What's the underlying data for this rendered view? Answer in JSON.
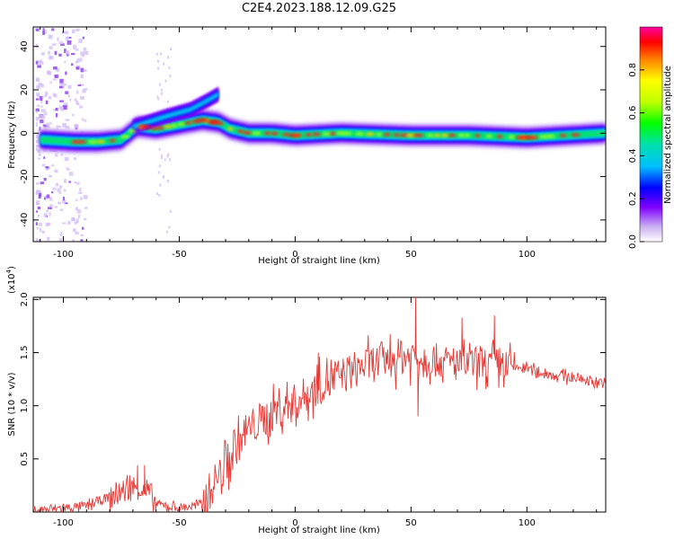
{
  "title": "C2E4.2023.188.12.09.G25",
  "chart_data": [
    {
      "type": "heatmap",
      "xlabel": "Height of straight line (km)",
      "ylabel": "Frequency (Hz)",
      "xlim": [
        -113,
        134
      ],
      "ylim": [
        -50,
        49
      ],
      "xticks": [
        -100,
        -50,
        0,
        50,
        100
      ],
      "yticks": [
        -40,
        -20,
        0,
        20,
        40
      ],
      "ridge": [
        {
          "x": -110,
          "y": -3
        },
        {
          "x": -95,
          "y": -4
        },
        {
          "x": -85,
          "y": -4
        },
        {
          "x": -75,
          "y": -3
        },
        {
          "x": -68,
          "y": 3
        },
        {
          "x": -60,
          "y": 2
        },
        {
          "x": -50,
          "y": 4
        },
        {
          "x": -40,
          "y": 6
        },
        {
          "x": -33,
          "y": 5
        },
        {
          "x": -28,
          "y": 2
        },
        {
          "x": -20,
          "y": 0
        },
        {
          "x": -10,
          "y": 0
        },
        {
          "x": 0,
          "y": -1
        },
        {
          "x": 20,
          "y": 0
        },
        {
          "x": 50,
          "y": -1
        },
        {
          "x": 75,
          "y": -1
        },
        {
          "x": 100,
          "y": -2
        },
        {
          "x": 134,
          "y": 0
        }
      ],
      "upper_branch": [
        {
          "x": -70,
          "y": 3
        },
        {
          "x": -55,
          "y": 8
        },
        {
          "x": -45,
          "y": 11
        },
        {
          "x": -38,
          "y": 15
        },
        {
          "x": -33,
          "y": 18
        }
      ],
      "colorbar": {
        "label": "Normalized spectral amplitude",
        "range": [
          0,
          1
        ],
        "ticks": [
          0.0,
          0.2,
          0.4,
          0.6,
          0.8
        ]
      }
    },
    {
      "type": "line",
      "xlabel": "Height of straight line (km)",
      "ylabel": "SNR (10 * v/v)",
      "scale_label": "(x10",
      "scale_exp": "4",
      "scale_close": ")",
      "xlim": [
        -113,
        134
      ],
      "ylim": [
        0,
        2.02
      ],
      "xticks": [
        -100,
        -50,
        0,
        50,
        100
      ],
      "yticks": [
        0.5,
        1.0,
        1.5,
        2.0
      ],
      "ytick_labels": [
        "0.5",
        "1.0",
        "1.5",
        "2.0"
      ],
      "color": "#e53935",
      "envelope": [
        {
          "x": -113,
          "y": 0.02
        },
        {
          "x": -90,
          "y": 0.06
        },
        {
          "x": -80,
          "y": 0.15
        },
        {
          "x": -70,
          "y": 0.25
        },
        {
          "x": -63,
          "y": 0.2
        },
        {
          "x": -60,
          "y": 0.08
        },
        {
          "x": -50,
          "y": 0.04
        },
        {
          "x": -40,
          "y": 0.08
        },
        {
          "x": -35,
          "y": 0.3
        },
        {
          "x": -30,
          "y": 0.45
        },
        {
          "x": -25,
          "y": 0.65
        },
        {
          "x": -20,
          "y": 0.8
        },
        {
          "x": -10,
          "y": 0.95
        },
        {
          "x": 0,
          "y": 1.05
        },
        {
          "x": 10,
          "y": 1.2
        },
        {
          "x": 20,
          "y": 1.3
        },
        {
          "x": 30,
          "y": 1.4
        },
        {
          "x": 40,
          "y": 1.45
        },
        {
          "x": 50,
          "y": 1.5
        },
        {
          "x": 60,
          "y": 1.45
        },
        {
          "x": 70,
          "y": 1.4
        },
        {
          "x": 80,
          "y": 1.42
        },
        {
          "x": 90,
          "y": 1.4
        },
        {
          "x": 100,
          "y": 1.35
        },
        {
          "x": 110,
          "y": 1.3
        },
        {
          "x": 120,
          "y": 1.27
        },
        {
          "x": 134,
          "y": 1.22
        }
      ],
      "peaks": [
        {
          "x": -77,
          "y": 0.25
        },
        {
          "x": -68,
          "y": 0.44
        },
        {
          "x": -65,
          "y": 0.44
        },
        {
          "x": 10,
          "y": 1.5
        },
        {
          "x": 52,
          "y": 2.02
        },
        {
          "x": 53,
          "y": 0.9
        },
        {
          "x": 72,
          "y": 1.83
        },
        {
          "x": 86,
          "y": 1.85
        }
      ]
    }
  ]
}
